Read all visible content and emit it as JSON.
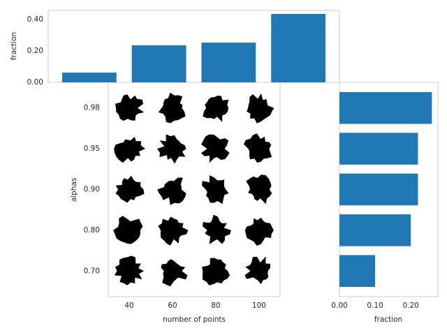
{
  "chart_data": [
    {
      "type": "bar",
      "categories": [
        null,
        null,
        null,
        null
      ],
      "values": [
        0.062,
        0.236,
        0.253,
        0.436
      ],
      "color": "#1f77b4",
      "ylabel": "fraction",
      "ylim": [
        0,
        0.458
      ],
      "yticks": [
        {
          "value": 0,
          "label": "0.00"
        },
        {
          "value": 0.2,
          "label": "0.20"
        },
        {
          "value": 0.4,
          "label": "0.40"
        }
      ],
      "grid": false
    },
    {
      "type": "grid",
      "xlabel": "number of points",
      "ylabel": "alphas",
      "xlim": [
        30.3,
        109.7
      ],
      "xticks": [
        40,
        60,
        80,
        100
      ],
      "categories": [
        "0.98",
        "0.95",
        "0.90",
        "0.80",
        "0.70"
      ],
      "color": "#000000"
    },
    {
      "type": "barh",
      "categories": [
        null,
        null,
        null,
        null,
        null
      ],
      "values": [
        0.259,
        0.22,
        0.22,
        0.2,
        0.1
      ],
      "color": "#1f77b4",
      "xlabel": "fraction",
      "xlim": [
        0,
        0.276
      ],
      "xticks": [
        {
          "value": 0,
          "label": "0.00"
        },
        {
          "value": 0.1,
          "label": "0.10"
        },
        {
          "value": 0.2,
          "label": "0.20"
        }
      ],
      "grid": false
    }
  ]
}
